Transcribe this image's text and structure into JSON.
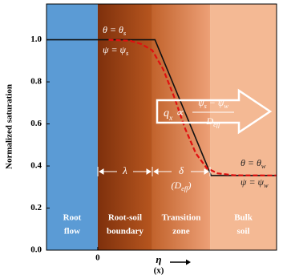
{
  "chart_data": {
    "type": "line",
    "y_label": "Normalized saturation",
    "x_label": "η",
    "x_sublabel": "(x)",
    "xlim": [
      -0.94,
      3.28
    ],
    "ylim": [
      0,
      1.17
    ],
    "xticks": [
      0
    ],
    "yticks": [
      {
        "value": 0,
        "label": "0.0"
      },
      0.2,
      0.4,
      0.6,
      0.8,
      {
        "value": 1,
        "label": "1.0"
      }
    ],
    "regions": [
      {
        "lines": [
          "Root",
          "flow"
        ],
        "from": -0.94,
        "to": 0,
        "colors": [
          "#5b9bd5",
          "#5b9bd5"
        ]
      },
      {
        "lines": [
          "Root-soil",
          "boundary"
        ],
        "from": 0,
        "to": 1,
        "colors": [
          "#7e300c",
          "#b7561f"
        ]
      },
      {
        "lines": [
          "Transition",
          "zone"
        ],
        "from": 1,
        "to": 2.06,
        "colors": [
          "#c2632c",
          "#eda077"
        ]
      },
      {
        "lines": [
          "Bulk",
          "soil"
        ],
        "from": 2.06,
        "to": 3.28,
        "colors": [
          "#f4b994",
          "#f4b994"
        ]
      }
    ],
    "series": [
      {
        "color": "#111111",
        "dashed": false,
        "x": [
          -0.94,
          1.05,
          2.08,
          3.28
        ],
        "values": [
          1,
          1,
          0.355,
          0.355
        ]
      },
      {
        "color": "#e01010",
        "dashed": true,
        "x": [
          0.2,
          0.6,
          0.8,
          1.0,
          1.2,
          1.4,
          1.6,
          1.8,
          2.0,
          2.2,
          2.5,
          3.28
        ],
        "values": [
          1,
          0.995,
          0.98,
          0.95,
          0.86,
          0.73,
          0.58,
          0.46,
          0.39,
          0.365,
          0.356,
          0.355
        ]
      }
    ],
    "annotations": {
      "theta_s": [
        {
          "t": "θ = θ"
        },
        {
          "t": "s",
          "sub": true
        }
      ],
      "psi_s": [
        {
          "t": "ψ = ψ"
        },
        {
          "t": "s",
          "sub": true
        }
      ],
      "theta_w": [
        {
          "t": "θ = θ"
        },
        {
          "t": "w",
          "sub": true
        }
      ],
      "psi_w": [
        {
          "t": "ψ = ψ"
        },
        {
          "t": "w",
          "sub": true
        }
      ],
      "lambda": [
        {
          "t": "λ"
        }
      ],
      "delta": [
        {
          "t": "δ"
        }
      ],
      "deff": [
        {
          "t": "(D"
        },
        {
          "t": "eff",
          "sub": true
        },
        {
          "t": ")"
        }
      ],
      "flux": [
        {
          "t": "q"
        },
        {
          "t": "x",
          "sub": true
        },
        {
          "t": " ∝"
        }
      ],
      "numerator": [
        {
          "t": "ψ"
        },
        {
          "t": "s",
          "sub": true
        },
        {
          "t": " − ψ"
        },
        {
          "t": "w",
          "sub": true
        }
      ],
      "denominator": [
        {
          "t": "D"
        },
        {
          "t": "eff",
          "sub": true
        }
      ]
    }
  }
}
